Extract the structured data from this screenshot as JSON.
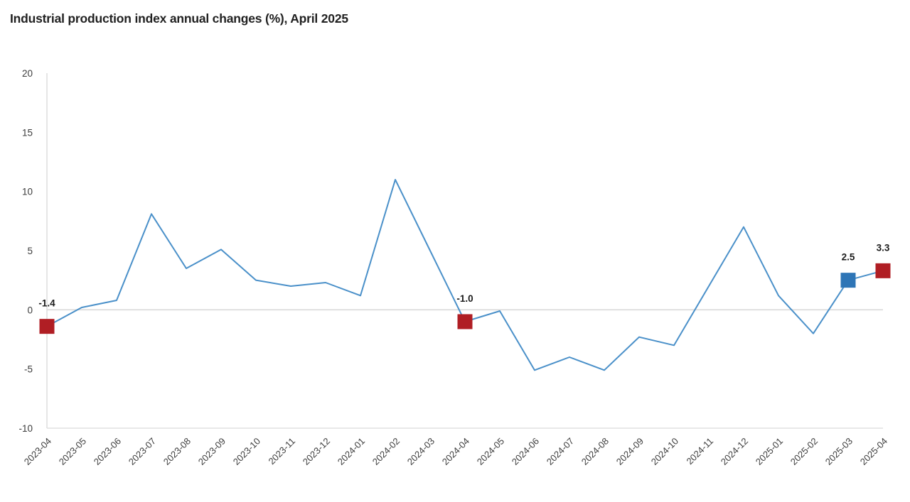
{
  "header": {
    "title": "Industrial production index annual changes (%), April 2025"
  },
  "chart_data": {
    "type": "line",
    "title": "Industrial production index annual changes (%), April 2025",
    "x": [
      "2023-04",
      "2023-05",
      "2023-06",
      "2023-07",
      "2023-08",
      "2023-09",
      "2023-10",
      "2023-11",
      "2023-12",
      "2024-01",
      "2024-02",
      "2024-03",
      "2024-04",
      "2024-05",
      "2024-06",
      "2024-07",
      "2024-08",
      "2024-09",
      "2024-10",
      "2024-11",
      "2024-12",
      "2025-01",
      "2025-02",
      "2025-03",
      "2025-04"
    ],
    "values": [
      -1.4,
      0.2,
      0.8,
      8.1,
      3.5,
      5.1,
      2.5,
      2.0,
      2.3,
      1.2,
      11.0,
      5.0,
      -1.0,
      -0.1,
      -5.1,
      -4.0,
      -5.1,
      -2.3,
      -3.0,
      2.0,
      7.0,
      1.2,
      -2.0,
      2.5,
      3.3
    ],
    "ylim": [
      -10,
      20
    ],
    "yticks": [
      20,
      15,
      10,
      5,
      0,
      -5,
      -10
    ],
    "grid": "zero-baseline-only",
    "legend_position": "none",
    "line_color": "#4a90c9",
    "axis_line_color": "#d9d9d9",
    "tick_label_color": "#3d3d3d",
    "annotation_label_color": "#1a1a1a",
    "annotated_points": [
      {
        "x": "2023-04",
        "value": -1.4,
        "label": "-1.4",
        "marker_color": "#b01e24"
      },
      {
        "x": "2024-04",
        "value": -1.0,
        "label": "-1.0",
        "marker_color": "#b01e24"
      },
      {
        "x": "2025-03",
        "value": 2.5,
        "label": "2.5",
        "marker_color": "#2e75b6"
      },
      {
        "x": "2025-04",
        "value": 3.3,
        "label": "3.3",
        "marker_color": "#b01e24"
      }
    ]
  }
}
